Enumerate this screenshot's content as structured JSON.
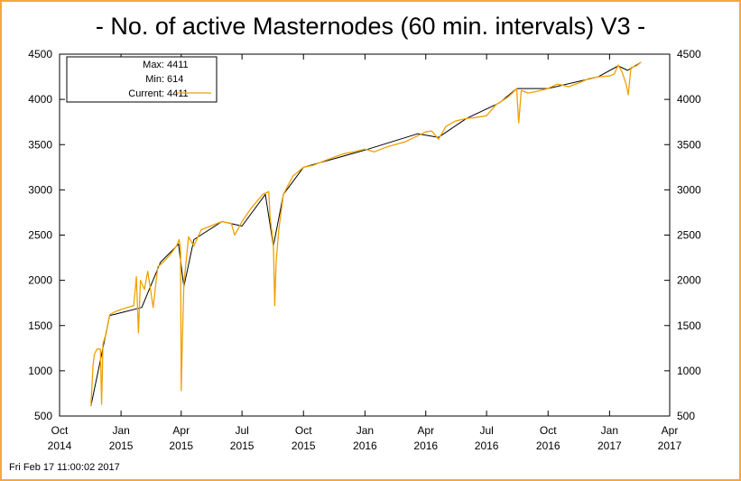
{
  "title": "- No. of active Masternodes (60 min. intervals) V3 -",
  "footer": "Fri Feb 17 11:00:02 2017",
  "legend": {
    "max_label": "Max:",
    "max_value": "4411",
    "min_label": "Min:",
    "min_value": "614",
    "current_label": "Current:",
    "current_value": "4411"
  },
  "colors": {
    "frame": "#f5a83a",
    "series_main": "#f0a000",
    "series_trend": "#000000",
    "axis": "#000000"
  },
  "chart_data": {
    "type": "line",
    "title": "- No. of active Masternodes (60 min. intervals) V3 -",
    "xlabel": "",
    "ylabel": "",
    "x_is_date": true,
    "x_range": [
      "2014-10-01",
      "2017-04-01"
    ],
    "ylim": [
      500,
      4500
    ],
    "y_ticks": [
      500,
      1000,
      1500,
      2000,
      2500,
      3000,
      3500,
      4000,
      4500
    ],
    "y_tick_labels_right": true,
    "x_ticks": [
      {
        "date": "2014-10-01",
        "label": [
          "Oct",
          "2014"
        ]
      },
      {
        "date": "2015-01-01",
        "label": [
          "Jan",
          "2015"
        ]
      },
      {
        "date": "2015-04-01",
        "label": [
          "Apr",
          "2015"
        ]
      },
      {
        "date": "2015-07-01",
        "label": [
          "Jul",
          "2015"
        ]
      },
      {
        "date": "2015-10-01",
        "label": [
          "Oct",
          "2015"
        ]
      },
      {
        "date": "2016-01-01",
        "label": [
          "Jan",
          "2016"
        ]
      },
      {
        "date": "2016-04-01",
        "label": [
          "Apr",
          "2016"
        ]
      },
      {
        "date": "2016-07-01",
        "label": [
          "Jul",
          "2016"
        ]
      },
      {
        "date": "2016-10-01",
        "label": [
          "Oct",
          "2016"
        ]
      },
      {
        "date": "2017-01-01",
        "label": [
          "Jan",
          "2017"
        ]
      },
      {
        "date": "2017-04-01",
        "label": [
          "Apr",
          "2017"
        ]
      }
    ],
    "grid": false,
    "legend_position": "top-left",
    "series": [
      {
        "name": "Current: 4411",
        "color": "#f0a000",
        "points": [
          [
            "2014-11-17",
            620
          ],
          [
            "2014-11-20",
            1050
          ],
          [
            "2014-11-22",
            1180
          ],
          [
            "2014-11-26",
            1240
          ],
          [
            "2014-12-01",
            1240
          ],
          [
            "2014-12-03",
            630
          ],
          [
            "2014-12-05",
            1300
          ],
          [
            "2014-12-10",
            1420
          ],
          [
            "2014-12-15",
            1620
          ],
          [
            "2014-12-25",
            1660
          ],
          [
            "2015-01-10",
            1700
          ],
          [
            "2015-01-20",
            1720
          ],
          [
            "2015-01-24",
            2040
          ],
          [
            "2015-01-27",
            1420
          ],
          [
            "2015-01-30",
            2000
          ],
          [
            "2015-02-05",
            1900
          ],
          [
            "2015-02-10",
            2100
          ],
          [
            "2015-02-18",
            1700
          ],
          [
            "2015-02-25",
            2150
          ],
          [
            "2015-03-05",
            2200
          ],
          [
            "2015-03-15",
            2280
          ],
          [
            "2015-03-25",
            2380
          ],
          [
            "2015-03-29",
            2450
          ],
          [
            "2015-03-31",
            2350
          ],
          [
            "2015-04-01",
            780
          ],
          [
            "2015-04-03",
            1400
          ],
          [
            "2015-04-05",
            1960
          ],
          [
            "2015-04-12",
            2480
          ],
          [
            "2015-04-20",
            2380
          ],
          [
            "2015-05-01",
            2560
          ],
          [
            "2015-05-15",
            2600
          ],
          [
            "2015-06-01",
            2650
          ],
          [
            "2015-06-15",
            2630
          ],
          [
            "2015-06-20",
            2500
          ],
          [
            "2015-07-01",
            2650
          ],
          [
            "2015-07-15",
            2800
          ],
          [
            "2015-08-01",
            2950
          ],
          [
            "2015-08-10",
            2980
          ],
          [
            "2015-08-12",
            2700
          ],
          [
            "2015-08-17",
            2400
          ],
          [
            "2015-08-19",
            1720
          ],
          [
            "2015-08-21",
            2200
          ],
          [
            "2015-08-25",
            2560
          ],
          [
            "2015-09-01",
            2950
          ],
          [
            "2015-09-15",
            3150
          ],
          [
            "2015-10-01",
            3250
          ],
          [
            "2015-10-15",
            3270
          ],
          [
            "2015-11-01",
            3320
          ],
          [
            "2015-11-15",
            3360
          ],
          [
            "2015-12-01",
            3400
          ],
          [
            "2015-12-15",
            3420
          ],
          [
            "2016-01-01",
            3450
          ],
          [
            "2016-01-15",
            3420
          ],
          [
            "2016-02-01",
            3470
          ],
          [
            "2016-02-15",
            3500
          ],
          [
            "2016-03-01",
            3530
          ],
          [
            "2016-03-15",
            3580
          ],
          [
            "2016-04-01",
            3640
          ],
          [
            "2016-04-10",
            3650
          ],
          [
            "2016-04-20",
            3560
          ],
          [
            "2016-05-01",
            3700
          ],
          [
            "2016-05-15",
            3760
          ],
          [
            "2016-06-01",
            3790
          ],
          [
            "2016-06-15",
            3800
          ],
          [
            "2016-07-01",
            3820
          ],
          [
            "2016-07-15",
            3940
          ],
          [
            "2016-08-01",
            4020
          ],
          [
            "2016-08-10",
            4080
          ],
          [
            "2016-08-15",
            4120
          ],
          [
            "2016-08-18",
            3740
          ],
          [
            "2016-08-22",
            4100
          ],
          [
            "2016-09-01",
            4070
          ],
          [
            "2016-09-15",
            4090
          ],
          [
            "2016-10-01",
            4120
          ],
          [
            "2016-10-15",
            4170
          ],
          [
            "2016-11-01",
            4140
          ],
          [
            "2016-11-15",
            4180
          ],
          [
            "2016-12-01",
            4230
          ],
          [
            "2016-12-15",
            4250
          ],
          [
            "2017-01-01",
            4260
          ],
          [
            "2017-01-08",
            4280
          ],
          [
            "2017-01-14",
            4380
          ],
          [
            "2017-01-20",
            4300
          ],
          [
            "2017-01-26",
            4160
          ],
          [
            "2017-01-29",
            4050
          ],
          [
            "2017-02-02",
            4350
          ],
          [
            "2017-02-10",
            4370
          ],
          [
            "2017-02-17",
            4411
          ]
        ]
      },
      {
        "name": "",
        "color": "#000000",
        "points": [
          [
            "2014-11-17",
            614
          ],
          [
            "2014-12-15",
            1610
          ],
          [
            "2015-02-01",
            1700
          ],
          [
            "2015-03-01",
            2200
          ],
          [
            "2015-03-28",
            2400
          ],
          [
            "2015-04-05",
            1930
          ],
          [
            "2015-04-20",
            2450
          ],
          [
            "2015-06-01",
            2650
          ],
          [
            "2015-07-01",
            2600
          ],
          [
            "2015-08-05",
            2950
          ],
          [
            "2015-08-17",
            2380
          ],
          [
            "2015-09-01",
            2950
          ],
          [
            "2015-10-01",
            3250
          ],
          [
            "2016-01-01",
            3440
          ],
          [
            "2016-03-20",
            3620
          ],
          [
            "2016-04-20",
            3580
          ],
          [
            "2016-06-01",
            3790
          ],
          [
            "2016-07-20",
            3960
          ],
          [
            "2016-08-15",
            4120
          ],
          [
            "2016-10-01",
            4120
          ],
          [
            "2016-12-15",
            4250
          ],
          [
            "2017-01-14",
            4370
          ],
          [
            "2017-01-28",
            4320
          ],
          [
            "2017-02-17",
            4411
          ]
        ]
      }
    ]
  }
}
